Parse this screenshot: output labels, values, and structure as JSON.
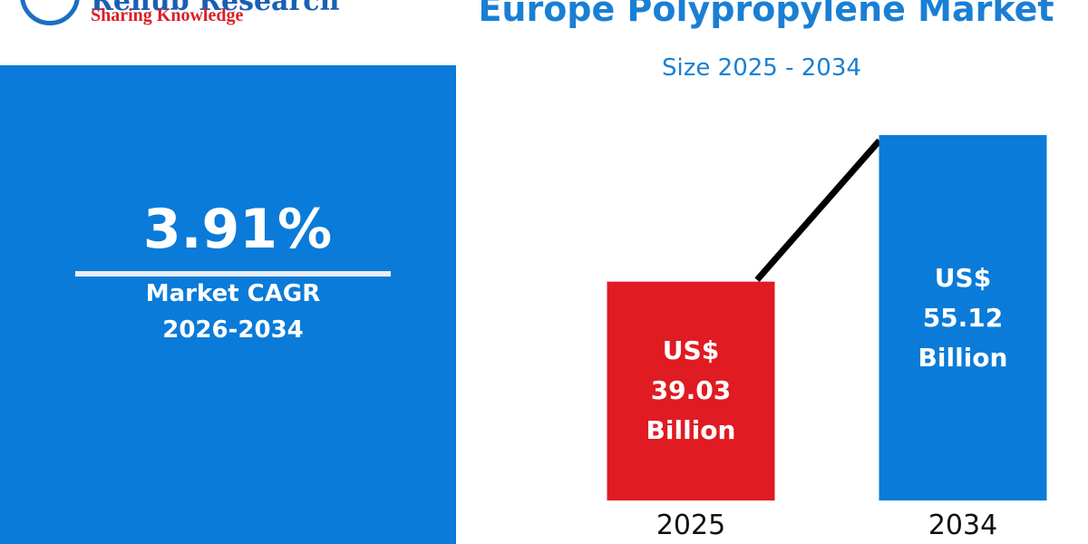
{
  "header": {
    "brand": "Renub Research",
    "tagline": "Sharing Knowledge"
  },
  "cagr": {
    "value": "3.91%",
    "label": "Market CAGR",
    "period": "2026-2034"
  },
  "chart_data": {
    "type": "bar",
    "title": "Europe Polypropylene Market",
    "subtitle": "Size 2025 - 2034",
    "categories": [
      "2025",
      "2034"
    ],
    "values": [
      39.03,
      55.12
    ],
    "value_labels": [
      "US$ 39.03 Billion",
      "US$ 55.12 Billion"
    ],
    "colors": [
      "#e01b22",
      "#0a7bd8"
    ],
    "ylim": [
      15,
      60
    ]
  }
}
